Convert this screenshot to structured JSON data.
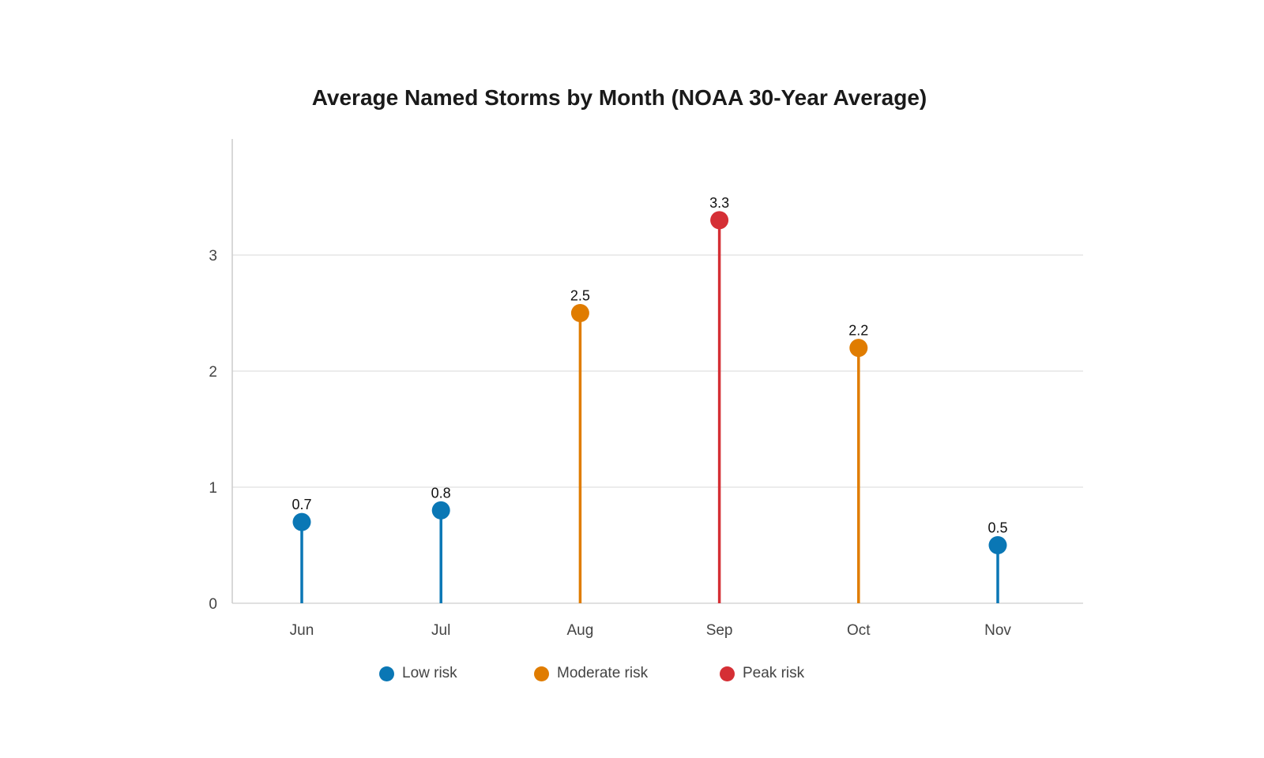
{
  "chart_data": {
    "type": "lollipop",
    "title": "Average Named Storms by Month (NOAA 30-Year Average)",
    "xlabel": "",
    "ylabel": "",
    "categories": [
      "Jun",
      "Jul",
      "Aug",
      "Sep",
      "Oct",
      "Nov"
    ],
    "values": [
      0.7,
      0.8,
      2.5,
      3.3,
      2.2,
      0.5
    ],
    "point_groups": [
      "Low risk",
      "Low risk",
      "Moderate risk",
      "Peak risk",
      "Moderate risk",
      "Low risk"
    ],
    "ylim": [
      0,
      4
    ],
    "yticks": [
      0,
      1,
      2,
      3
    ],
    "grid": true,
    "legend_position": "bottom",
    "legend": [
      {
        "label": "Low risk",
        "color": "#0a77b5"
      },
      {
        "label": "Moderate risk",
        "color": "#e07c00"
      },
      {
        "label": "Peak risk",
        "color": "#d52f35"
      }
    ]
  }
}
